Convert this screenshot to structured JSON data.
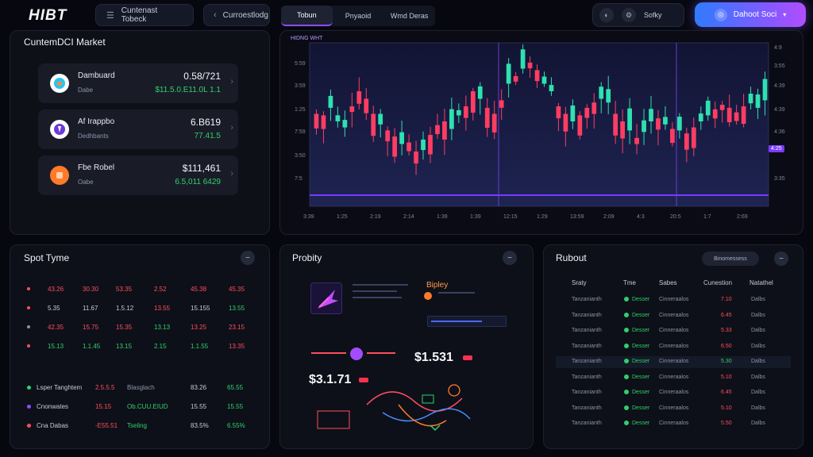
{
  "topbar": {
    "logo": "HIBT",
    "nav1_label": "Cuntenast Tobeck",
    "nav2_label": "Curroestlodg",
    "tabs": [
      {
        "label": "Tobun"
      },
      {
        "label": "Pnyaoid"
      },
      {
        "label": "Wmd Deras"
      }
    ],
    "settings_label": "Sofky",
    "cta_label": "Dahoot Soci"
  },
  "market": {
    "title": "CuntemDCI Market",
    "items": [
      {
        "name": "Dambuard",
        "sub": "Dabe",
        "price": "0.58/721",
        "change": "$11.5.0.E11.0L 1.1"
      },
      {
        "name": "Af Irappbo",
        "sub": "Dedhbants",
        "price": "6.B619",
        "change": "77.41.5"
      },
      {
        "name": "Fbe Robel",
        "sub": "Oabe",
        "price": "$111,461",
        "change": "6.5,011 6429"
      }
    ]
  },
  "chart": {
    "legend": "HIDNG WHT",
    "y_left": [
      "5:59",
      "3:59",
      "1:25",
      "7:59",
      "3:50",
      "7:5"
    ],
    "y_right": [
      "4:9",
      "3:55",
      "4:39",
      "4:39",
      "4:36",
      "3:35"
    ],
    "marker_label": "4:25",
    "x_labels": [
      "3:39",
      "1:25",
      "2:19",
      "2:14",
      "1:39",
      "1:39",
      "12:15",
      "1:29",
      "13:59",
      "2:09",
      "4:3",
      "20:5",
      "1:7",
      "2:69"
    ]
  },
  "spot": {
    "title": "Spot Tyme",
    "rows": [
      {
        "dot": "#ff4d5e",
        "cells": [
          "43.26",
          "30.30",
          "53.35",
          "2.52",
          "45.38",
          "45.35"
        ],
        "cls": [
          "r",
          "r",
          "r",
          "r",
          "r",
          "r"
        ]
      },
      {
        "dot": "#ff4d5e",
        "cells": [
          "5.35",
          "11.67",
          "1.5.12",
          "13.55",
          "15.155",
          "13.55"
        ],
        "cls": [
          "w",
          "w",
          "w",
          "r",
          "w",
          "g"
        ]
      },
      {
        "dot": "#8d93a8",
        "cells": [
          "42.35",
          "15.75",
          "15.35",
          "13.13",
          "13.25",
          "23.15"
        ],
        "cls": [
          "r",
          "r",
          "r",
          "g",
          "r",
          "r"
        ]
      },
      {
        "dot": "#ff4d5e",
        "cells": [
          "15.13",
          "1.1.45",
          "13.15",
          "2.15",
          "1.1.55",
          "13.35"
        ],
        "cls": [
          "g",
          "g",
          "g",
          "g",
          "g",
          "r"
        ]
      }
    ],
    "orders": [
      {
        "dot": "#2fd06d",
        "label": "Lsper Tanghtem",
        "a": "2.5.5.5",
        "b": "Blasglach",
        "c": "83.26",
        "d": "65.55"
      },
      {
        "dot": "#8a4dff",
        "label": "Cnonwates",
        "a": "15.15",
        "b": "Ob.CUU.EIUD",
        "c": "15.55",
        "d": "15.55"
      },
      {
        "dot": "#ff4d5e",
        "label": "Cna Dabas",
        "a": "-E55.51",
        "b": "Tseling",
        "c": "83.5%",
        "d": "6.55%"
      }
    ]
  },
  "probity": {
    "title": "Probity",
    "tag_label": "Bipley",
    "price_a": "$1.531",
    "price_b": "$3.1.71"
  },
  "rubout": {
    "title": "Rubout",
    "filter_label": "Binomessess",
    "headers": [
      "Sraty",
      "Tme",
      "Sabes",
      "Cunestion",
      "Natathel"
    ],
    "rows": [
      {
        "a": "Tanzanianth",
        "b": "Desser",
        "c": "Cinneraalos",
        "d": "7.10",
        "e": "Dalbs"
      },
      {
        "a": "Tanzanianth",
        "b": "Desser",
        "c": "Cinneraalos",
        "d": "6.45",
        "e": "Dalbs"
      },
      {
        "a": "Tanzanianth",
        "b": "Desser",
        "c": "Cinneraalos",
        "d": "5.33",
        "e": "Dalbs"
      },
      {
        "a": "Tanzanianth",
        "b": "Desser",
        "c": "Cinneraalos",
        "d": "6.50",
        "e": "Dalbs"
      },
      {
        "a": "Tanzanianth",
        "b": "Desser",
        "c": "Cinneraalos",
        "d": "5.30",
        "e": "Dalbs"
      },
      {
        "a": "Tanzanianth",
        "b": "Desser",
        "c": "Cinneraalos",
        "d": "5.10",
        "e": "Dalbs"
      },
      {
        "a": "Tanzanianth",
        "b": "Desser",
        "c": "Cinneraalos",
        "d": "6.45",
        "e": "Dalbs"
      },
      {
        "a": "Tanzanianth",
        "b": "Desser",
        "c": "Cinneraalos",
        "d": "5.10",
        "e": "Dalbs"
      },
      {
        "a": "Tanzanianth",
        "b": "Desser",
        "c": "Cinneraalos",
        "d": "5.50",
        "e": "Dalbs"
      }
    ],
    "highlight_index": 4
  },
  "colors": {
    "accent": "#8a4dff",
    "up": "#2fd06d",
    "down": "#ff4d5e",
    "cta_from": "#2f7bff",
    "cta_to": "#b14dff"
  }
}
